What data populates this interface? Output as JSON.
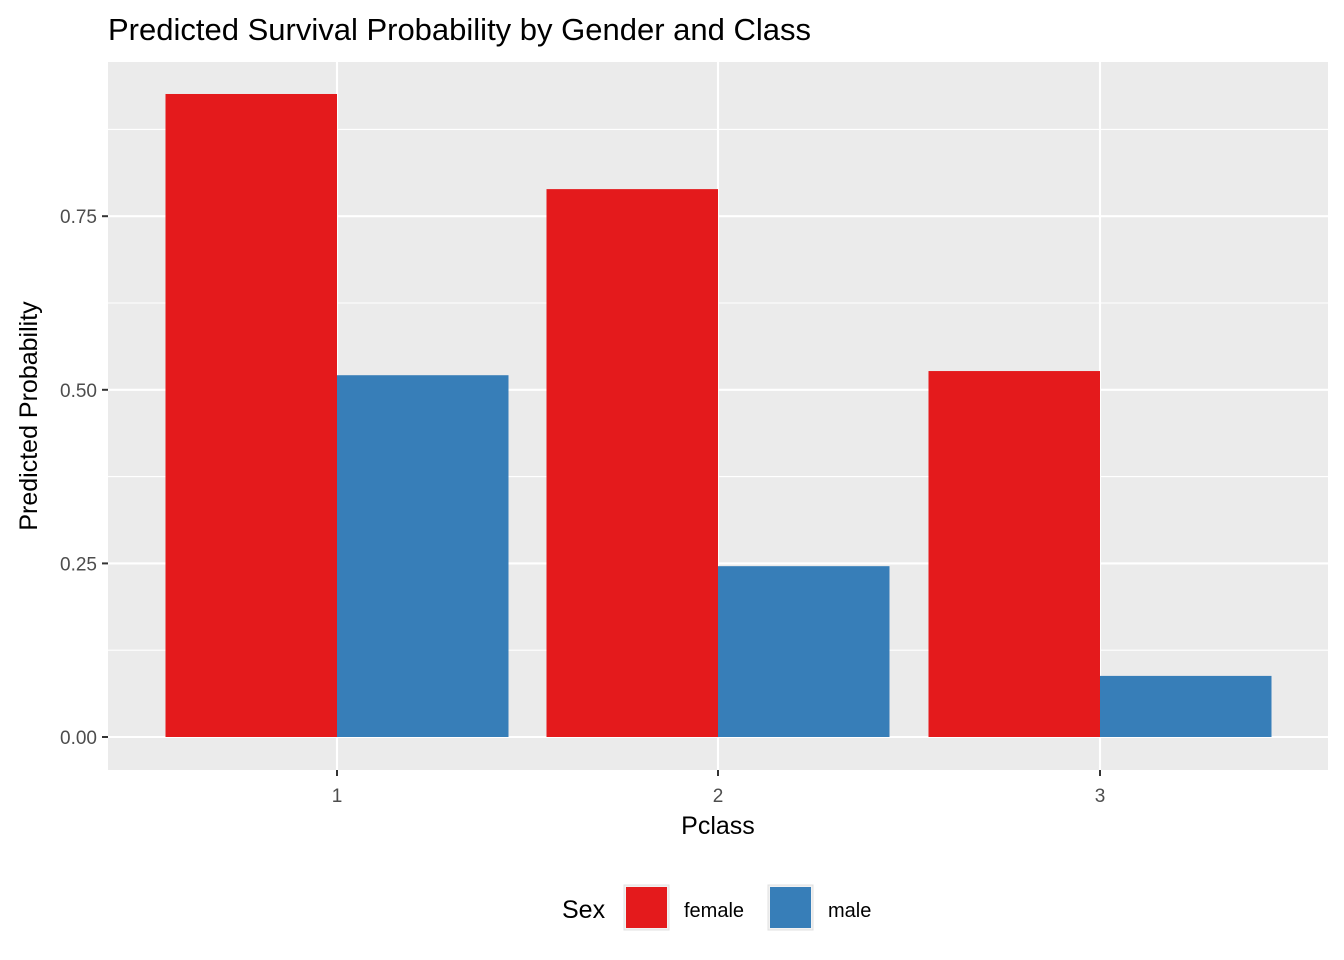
{
  "chart_data": {
    "type": "bar",
    "title": "Predicted Survival Probability by Gender and Class",
    "xlabel": "Pclass",
    "ylabel": "Predicted Probability",
    "categories": [
      "1",
      "2",
      "3"
    ],
    "series": [
      {
        "name": "female",
        "color": "#E41A1C",
        "values": [
          0.926,
          0.789,
          0.527
        ]
      },
      {
        "name": "male",
        "color": "#377EB8",
        "values": [
          0.521,
          0.246,
          0.088
        ]
      }
    ],
    "yticks": [
      0,
      0.25,
      0.5,
      0.75
    ],
    "ytick_labels": [
      "0.00",
      "0.25",
      "0.50",
      "0.75"
    ],
    "ylim": [
      -0.046,
      0.972
    ],
    "grid": true,
    "panel_background": "#EBEBEB",
    "grid_color": "#FFFFFF",
    "legend": {
      "title": "Sex",
      "position": "bottom"
    }
  }
}
